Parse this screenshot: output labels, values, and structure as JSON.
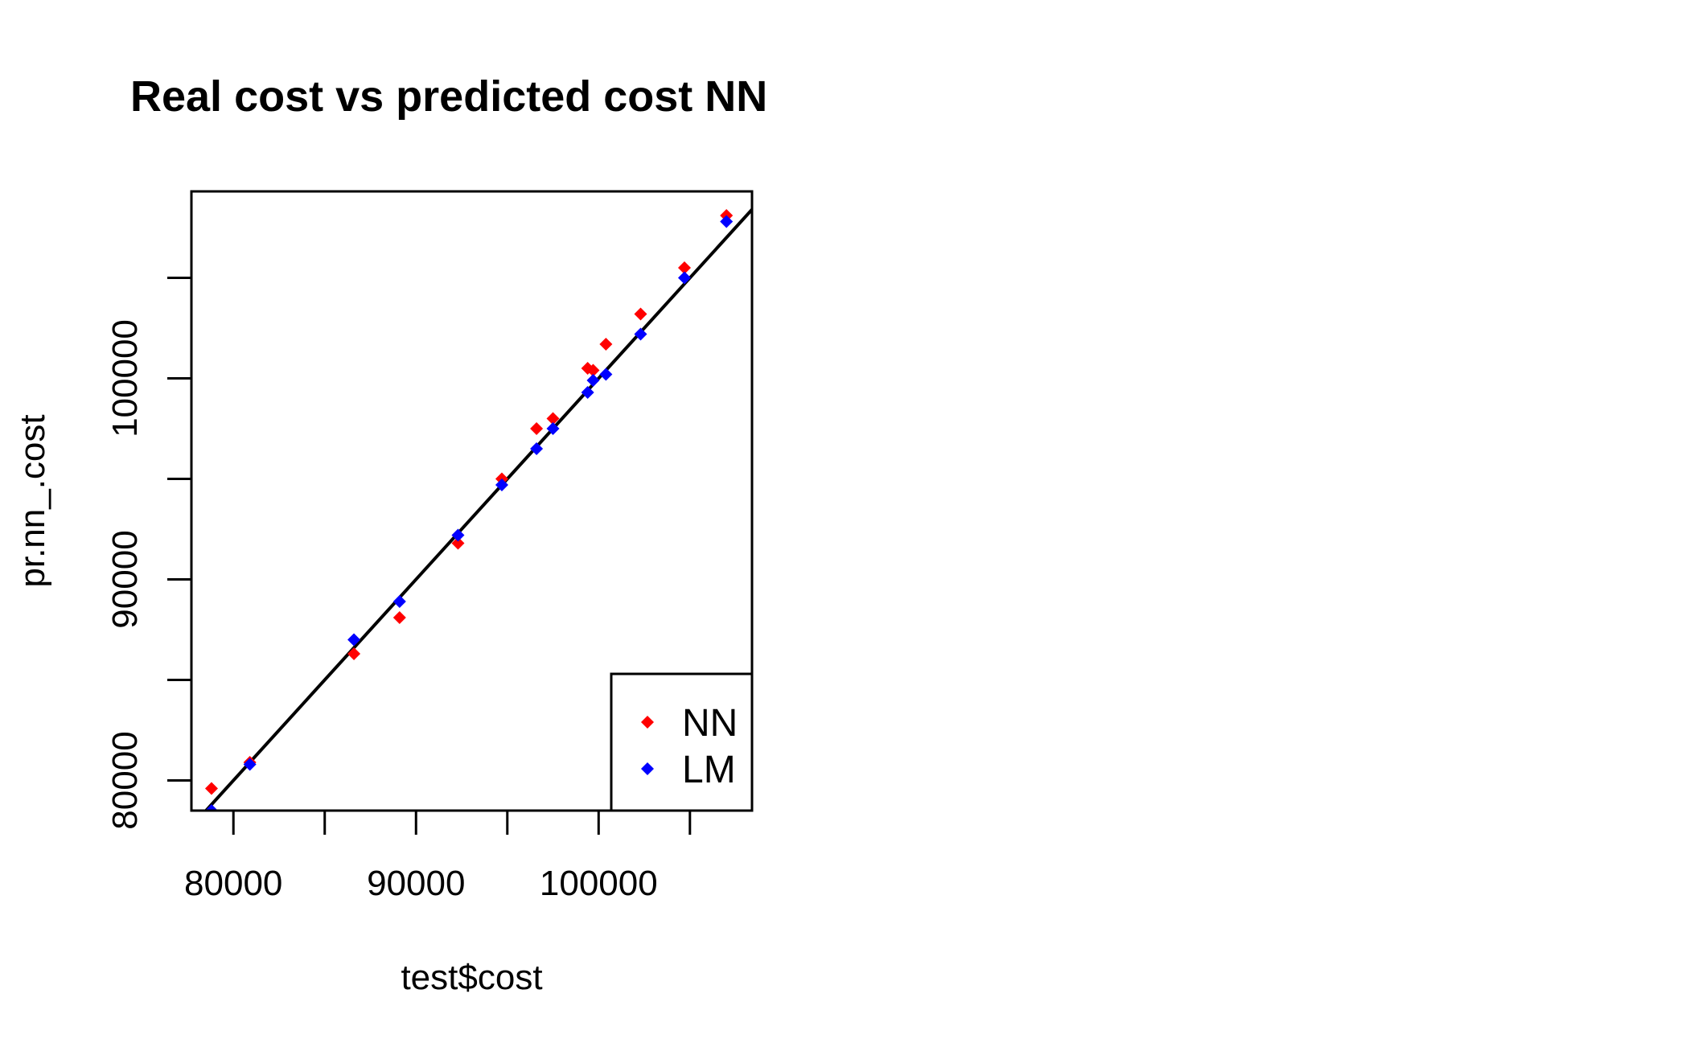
{
  "chart_data": {
    "type": "scatter",
    "title": "Real cost vs predicted cost NN",
    "xlabel": "test$cost",
    "ylabel": "pr.nn_.cost",
    "xlim": [
      77700,
      108400
    ],
    "ylim": [
      78500,
      109300
    ],
    "x_ticks": [
      80000,
      85000,
      90000,
      95000,
      100000,
      105000
    ],
    "x_tick_labels": [
      "80000",
      "",
      "90000",
      "",
      "100000",
      ""
    ],
    "y_ticks": [
      80000,
      85000,
      90000,
      95000,
      100000,
      105000
    ],
    "y_tick_labels": [
      "80000",
      "",
      "90000",
      "",
      "100000",
      ""
    ],
    "grid": false,
    "legend_position": "bottom-right",
    "reference_line": {
      "slope": 1,
      "intercept": 0,
      "color": "#000000"
    },
    "series": [
      {
        "name": "NN",
        "color": "#ff0000",
        "marker": "diamond",
        "points": [
          [
            78800,
            79600
          ],
          [
            80900,
            80900
          ],
          [
            86600,
            86300
          ],
          [
            89100,
            88100
          ],
          [
            92300,
            91800
          ],
          [
            94700,
            95000
          ],
          [
            96600,
            97500
          ],
          [
            97500,
            98000
          ],
          [
            99400,
            100500
          ],
          [
            99700,
            100400
          ],
          [
            100400,
            101700
          ],
          [
            102300,
            103200
          ],
          [
            104700,
            105500
          ],
          [
            107000,
            108100
          ]
        ]
      },
      {
        "name": "LM",
        "color": "#0000ff",
        "marker": "diamond",
        "points": [
          [
            78800,
            78500
          ],
          [
            80900,
            80800
          ],
          [
            86600,
            87000
          ],
          [
            89100,
            88900
          ],
          [
            92300,
            92200
          ],
          [
            94700,
            94700
          ],
          [
            96600,
            96500
          ],
          [
            97500,
            97500
          ],
          [
            99400,
            99300
          ],
          [
            99700,
            99900
          ],
          [
            100400,
            100200
          ],
          [
            102300,
            102200
          ],
          [
            104700,
            105000
          ],
          [
            107000,
            107800
          ]
        ]
      }
    ]
  }
}
